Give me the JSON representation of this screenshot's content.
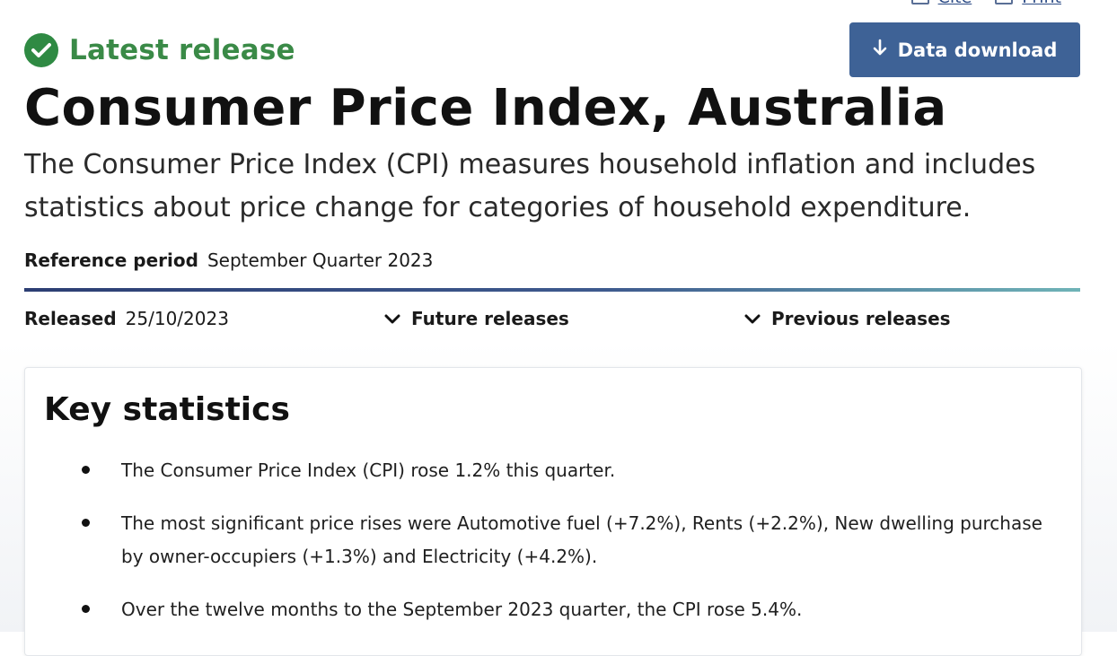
{
  "top": {
    "cite_label": "Cite",
    "print_label": "Print"
  },
  "status": {
    "label": "Latest release",
    "color": "#3a8a47",
    "icon": "check-circle-icon"
  },
  "download_button": {
    "label": "Data download",
    "icon": "arrow-down-icon",
    "color": "#3e6296"
  },
  "title": "Consumer Price Index, Australia",
  "subtitle": "The Consumer Price Index (CPI) measures household inflation and includes statistics about price change for categories of household expenditure.",
  "reference_period": {
    "label": "Reference period",
    "value": "September Quarter 2023"
  },
  "released": {
    "label": "Released",
    "value": "25/10/2023"
  },
  "future_releases": {
    "label": "Future releases",
    "icon": "chevron-down-icon"
  },
  "previous_releases": {
    "label": "Previous releases",
    "icon": "chevron-down-icon"
  },
  "key_statistics": {
    "heading": "Key statistics",
    "items": [
      "The Consumer Price Index (CPI) rose 1.2% this quarter.",
      "The most significant price rises were Automotive fuel (+7.2%), Rents (+2.2%), New dwelling purchase by owner-occupiers (+1.3%) and Electricity (+4.2%).",
      "Over the twelve months to the September 2023 quarter, the CPI rose 5.4%."
    ]
  }
}
